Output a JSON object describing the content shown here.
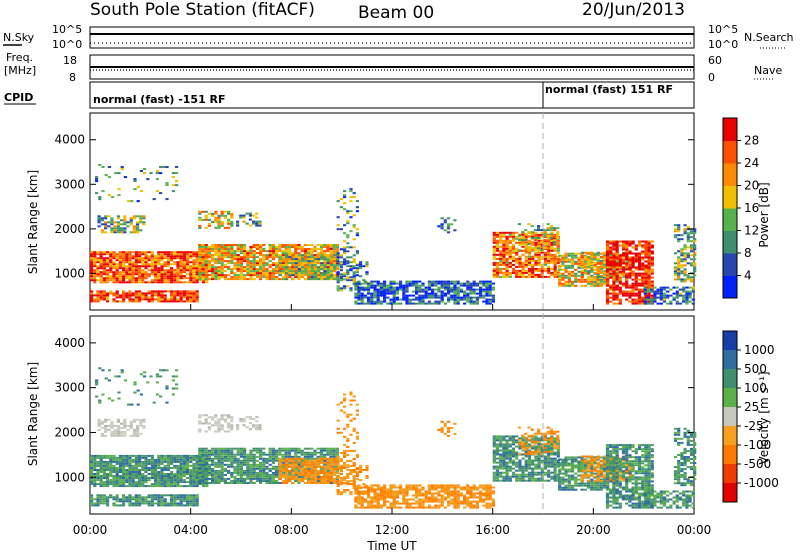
{
  "header": {
    "station": "South Pole Station (fitACF)",
    "beam": "Beam 00",
    "date": "20/Jun/2013"
  },
  "top_panels": {
    "nsky_label": "N.Sky",
    "nsky_ticks": [
      "10^5",
      "10^0"
    ],
    "nsearch_label": "N.Search",
    "nsearch_ticks": [
      "10^5",
      "10^0"
    ],
    "freq_label": "Freq.",
    "freq_unit": "[MHz]",
    "freq_ticks": [
      "18",
      "8"
    ],
    "nave_label": "Nave",
    "nave_ticks": [
      "60",
      "0"
    ],
    "cpid_label": "CPID",
    "cpid_segments": [
      {
        "text": "normal (fast) -151 RF",
        "start_h": 0
      },
      {
        "text": "normal (fast) 151 RF",
        "start_h": 18
      }
    ]
  },
  "chart_data": [
    {
      "type": "heatmap",
      "name": "power",
      "xlabel": "",
      "ylabel": "Slant Range [km]",
      "xlim": [
        0,
        24
      ],
      "ylim": [
        180,
        4600
      ],
      "y_ticks": [
        1000,
        2000,
        3000,
        4000
      ],
      "colorbar": {
        "label": "Power [dB]",
        "ticks": [
          "4",
          "8",
          "12",
          "16",
          "20",
          "24",
          "28"
        ],
        "colors": [
          "#0020ff",
          "#2646b2",
          "#3f8f6e",
          "#55b24c",
          "#f0c000",
          "#ff8a00",
          "#ff5000",
          "#e80000"
        ]
      }
    },
    {
      "type": "heatmap",
      "name": "velocity",
      "xlabel": "Time UT",
      "ylabel": "Slant Range [km]",
      "xlim": [
        0,
        24
      ],
      "ylim": [
        180,
        4600
      ],
      "y_ticks": [
        1000,
        2000,
        3000,
        4000
      ],
      "x_ticks": [
        "00:00",
        "04:00",
        "08:00",
        "12:00",
        "16:00",
        "20:00",
        "00:00"
      ],
      "colorbar": {
        "label": "Velocity [m s⁻¹]",
        "ticks": [
          "1000",
          "500",
          "100",
          "25",
          "-25",
          "-100",
          "-500",
          "-1000"
        ],
        "colors": [
          "#1a3ea8",
          "#2f6ea0",
          "#3f8f6e",
          "#5bb04a",
          "#c8c8bc",
          "#f7a020",
          "#ff7a00",
          "#f03a00",
          "#e00000"
        ]
      }
    }
  ],
  "colors": {
    "velocity_green": "#4f9a6a",
    "velocity_orange": "#f59a1a",
    "velocity_grey": "#c6c6bc",
    "power_blue": "#2040d0",
    "power_red": "#e82a10"
  }
}
